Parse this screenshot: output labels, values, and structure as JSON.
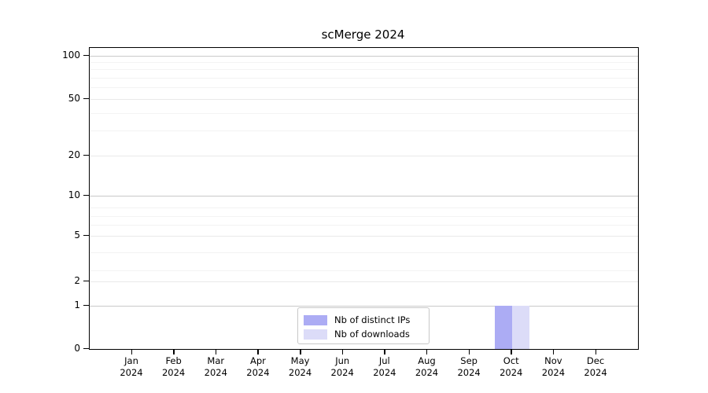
{
  "chart_data": {
    "type": "bar",
    "title": "scMerge 2024",
    "categories": [
      "Jan 2024",
      "Feb 2024",
      "Mar 2024",
      "Apr 2024",
      "May 2024",
      "Jun 2024",
      "Jul 2024",
      "Aug 2024",
      "Sep 2024",
      "Oct 2024",
      "Nov 2024",
      "Dec 2024"
    ],
    "series": [
      {
        "name": "Nb of distinct IPs",
        "color": "#acacf4",
        "values": [
          0,
          0,
          0,
          0,
          0,
          0,
          0,
          0,
          0,
          1,
          0,
          0
        ]
      },
      {
        "name": "Nb of downloads",
        "color": "#dcdcf8",
        "values": [
          0,
          0,
          0,
          0,
          0,
          0,
          0,
          0,
          0,
          1,
          0,
          0
        ]
      }
    ],
    "xlabel": "",
    "ylabel": "",
    "y_ticks": [
      100,
      50,
      20,
      10,
      5,
      2,
      1,
      0
    ],
    "yscale": "log-like",
    "ylim": [
      0,
      100
    ],
    "grid": "horizontal",
    "legend_position": "lower center"
  }
}
